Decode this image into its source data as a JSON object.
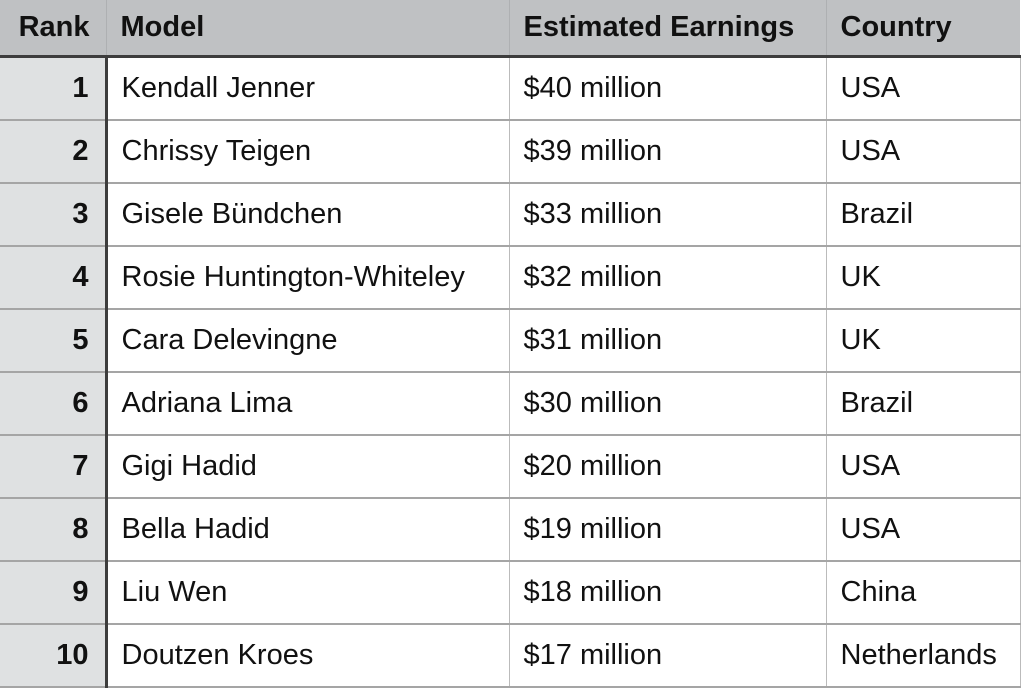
{
  "table": {
    "columns": [
      {
        "key": "rank",
        "label": "Rank"
      },
      {
        "key": "model",
        "label": "Model"
      },
      {
        "key": "earnings",
        "label": "Estimated Earnings"
      },
      {
        "key": "country",
        "label": "Country"
      }
    ],
    "rows": [
      {
        "rank": "1",
        "model": "Kendall Jenner",
        "earnings": "$40 million",
        "country": "USA"
      },
      {
        "rank": "2",
        "model": "Chrissy Teigen",
        "earnings": "$39 million",
        "country": "USA"
      },
      {
        "rank": "3",
        "model": "Gisele Bündchen",
        "earnings": "$33 million",
        "country": "Brazil"
      },
      {
        "rank": "4",
        "model": "Rosie Huntington-Whiteley",
        "earnings": "$32 million",
        "country": "UK"
      },
      {
        "rank": "5",
        "model": "Cara Delevingne",
        "earnings": "$31 million",
        "country": "UK"
      },
      {
        "rank": "6",
        "model": "Adriana Lima",
        "earnings": "$30 million",
        "country": "Brazil"
      },
      {
        "rank": "7",
        "model": "Gigi Hadid",
        "earnings": "$20 million",
        "country": "USA"
      },
      {
        "rank": "8",
        "model": "Bella Hadid",
        "earnings": "$19 million",
        "country": "USA"
      },
      {
        "rank": "9",
        "model": "Liu Wen",
        "earnings": "$18 million",
        "country": "China"
      },
      {
        "rank": "10",
        "model": "Doutzen Kroes",
        "earnings": "$17 million",
        "country": "Netherlands"
      }
    ]
  },
  "colors": {
    "header_background": "#bfc1c3",
    "rank_column_background": "#dfe1e2",
    "dark_border": "#3d3d3d",
    "row_separator": "#a5a5a5",
    "column_separator": "#bbbbbb",
    "text": "#111111",
    "body_background": "#ffffff"
  },
  "chart_data": {
    "type": "table",
    "title": "",
    "columns": [
      "Rank",
      "Model",
      "Estimated Earnings",
      "Country"
    ],
    "rows": [
      [
        1,
        "Kendall Jenner",
        "$40 million",
        "USA"
      ],
      [
        2,
        "Chrissy Teigen",
        "$39 million",
        "USA"
      ],
      [
        3,
        "Gisele Bündchen",
        "$33 million",
        "Brazil"
      ],
      [
        4,
        "Rosie Huntington-Whiteley",
        "$32 million",
        "UK"
      ],
      [
        5,
        "Cara Delevingne",
        "$31 million",
        "UK"
      ],
      [
        6,
        "Adriana Lima",
        "$30 million",
        "Brazil"
      ],
      [
        7,
        "Gigi Hadid",
        "$20 million",
        "USA"
      ],
      [
        8,
        "Bella Hadid",
        "$19 million",
        "USA"
      ],
      [
        9,
        "Liu Wen",
        "$18 million",
        "China"
      ],
      [
        10,
        "Doutzen Kroes",
        "$17 million",
        "Netherlands"
      ]
    ],
    "earnings_values_million_usd": [
      40,
      39,
      33,
      32,
      31,
      30,
      20,
      19,
      18,
      17
    ]
  }
}
